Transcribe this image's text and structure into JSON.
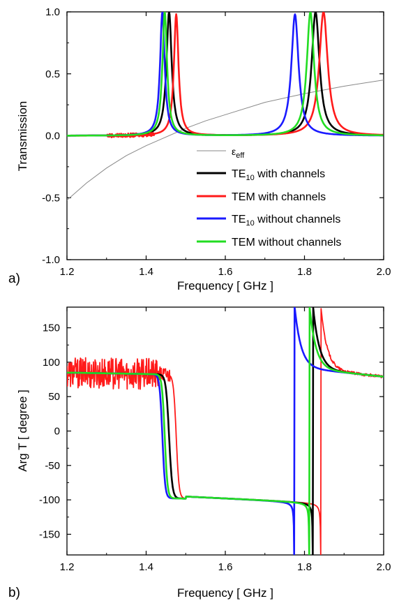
{
  "chart_data": [
    {
      "panel_label": "a)",
      "type": "line",
      "xlabel": "Frequency [ GHz ]",
      "ylabel": "Transmission",
      "xlim": [
        1.2,
        2.0
      ],
      "ylim": [
        -1.0,
        1.0
      ],
      "xticks": [
        "1.2",
        "1.4",
        "1.6",
        "1.8",
        "2.0"
      ],
      "yticks": [
        "-1.0",
        "-0.5",
        "0.0",
        "0.5",
        "1.0"
      ],
      "legend_position": "bottom-right",
      "series": [
        {
          "name": "ε_eff",
          "name_main": "ε",
          "name_sub": "eff",
          "name_rest": "",
          "color": "#888888",
          "kind": "eps",
          "x": [
            1.2,
            1.25,
            1.3,
            1.35,
            1.4,
            1.45,
            1.5,
            1.55,
            1.6,
            1.7,
            1.8,
            1.9,
            2.0
          ],
          "y": [
            -0.52,
            -0.38,
            -0.26,
            -0.16,
            -0.08,
            -0.01,
            0.06,
            0.12,
            0.17,
            0.27,
            0.34,
            0.4,
            0.45
          ]
        },
        {
          "name": "TE10 with channels",
          "name_main": "TE",
          "name_sub": "10",
          "name_rest": " with channels",
          "color": "#000000",
          "resonances": [
            {
              "f": 1.458,
              "w": 0.008,
              "a": 1.0
            },
            {
              "f": 1.828,
              "w": 0.012,
              "a": 1.0
            }
          ]
        },
        {
          "name": "TEM with channels",
          "name_main": "TEM with channels",
          "name_sub": "",
          "name_rest": "",
          "color": "#ff1a1a",
          "resonances": [
            {
              "f": 1.476,
              "w": 0.007,
              "a": 0.98
            },
            {
              "f": 1.848,
              "w": 0.013,
              "a": 1.0
            }
          ]
        },
        {
          "name": "TE10 without channels",
          "name_main": "TE",
          "name_sub": "10",
          "name_rest": " without channels",
          "color": "#1a1aff",
          "resonances": [
            {
              "f": 1.441,
              "w": 0.007,
              "a": 1.0
            },
            {
              "f": 1.776,
              "w": 0.011,
              "a": 0.98
            }
          ]
        },
        {
          "name": "TEM without channels",
          "name_main": "TEM without channels",
          "name_sub": "",
          "name_rest": "",
          "color": "#22dd22",
          "resonances": [
            {
              "f": 1.447,
              "w": 0.007,
              "a": 1.0
            },
            {
              "f": 1.815,
              "w": 0.011,
              "a": 1.0
            }
          ]
        }
      ]
    },
    {
      "panel_label": "b)",
      "type": "line",
      "xlabel": "Frequency [ GHz ]",
      "ylabel": "Arg T [ degree ]",
      "xlim": [
        1.2,
        2.0
      ],
      "ylim": [
        -180,
        180
      ],
      "xticks": [
        "1.2",
        "1.4",
        "1.6",
        "1.8",
        "2.0"
      ],
      "yticks": [
        "-150",
        "-100",
        "-50",
        "0",
        "50",
        "100",
        "150"
      ],
      "series": [
        {
          "name": "TE10 with channels",
          "color": "#000000",
          "f1": 1.458,
          "w1": 0.008,
          "f2": 1.828,
          "w2": 0.012,
          "jump": 1.821
        },
        {
          "name": "TEM with channels",
          "color": "#ff1a1a",
          "f1": 1.476,
          "w1": 0.007,
          "f2": 1.848,
          "w2": 0.013,
          "jump": 1.841,
          "noisy": true
        },
        {
          "name": "TE10 without channels",
          "color": "#1a1aff",
          "f1": 1.441,
          "w1": 0.007,
          "f2": 1.776,
          "w2": 0.011,
          "jump": 1.774
        },
        {
          "name": "TEM without channels",
          "color": "#22dd22",
          "f1": 1.447,
          "w1": 0.007,
          "f2": 1.815,
          "w2": 0.011,
          "jump": 1.812
        }
      ]
    }
  ]
}
